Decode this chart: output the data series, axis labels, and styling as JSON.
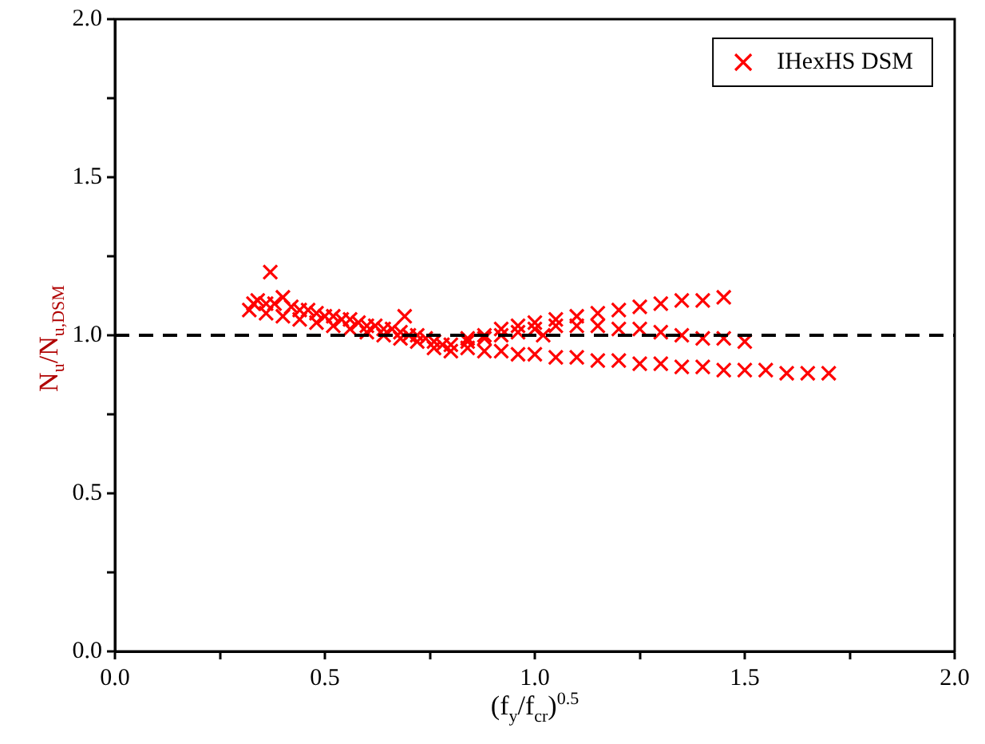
{
  "chart_data": {
    "type": "scatter",
    "xlabel": "(f$_{y}$/f$_{cr}$)$^{0.5}$",
    "ylabel": "N$_{u}$/N$_{u,DSM}$",
    "xlim": [
      0,
      2
    ],
    "ylim": [
      0,
      2
    ],
    "xticks": [
      {
        "value": 0,
        "label": "0.0"
      },
      {
        "value": 0.25,
        "label": null
      },
      {
        "value": 0.5,
        "label": "0.5"
      },
      {
        "value": 0.75,
        "label": null
      },
      {
        "value": 1,
        "label": "1.0"
      },
      {
        "value": 1.25,
        "label": null
      },
      {
        "value": 1.5,
        "label": "1.5"
      },
      {
        "value": 1.75,
        "label": null
      },
      {
        "value": 2,
        "label": "2.0"
      }
    ],
    "yticks": [
      {
        "value": 0,
        "label": "0.0"
      },
      {
        "value": 0.25,
        "label": null
      },
      {
        "value": 0.5,
        "label": "0.5"
      },
      {
        "value": 0.75,
        "label": null
      },
      {
        "value": 1,
        "label": "1.0"
      },
      {
        "value": 1.25,
        "label": null
      },
      {
        "value": 1.5,
        "label": "1.5"
      },
      {
        "value": 1.75,
        "label": null
      },
      {
        "value": 2,
        "label": "2.0"
      }
    ],
    "grid": false,
    "legend": "top right",
    "marker": "cross",
    "ref_lines": [
      {
        "axis": "y",
        "value": 1,
        "color": "#000000",
        "line_style": "dashed"
      }
    ],
    "series": [
      {
        "name": "IHexHS DSM",
        "color": "#ff0000",
        "x": [
          0.32,
          0.33,
          0.34,
          0.36,
          0.37,
          0.38,
          0.4,
          0.42,
          0.44,
          0.46,
          0.48,
          0.5,
          0.52,
          0.54,
          0.56,
          0.58,
          0.6,
          0.62,
          0.64,
          0.66,
          0.68,
          0.69,
          0.7,
          0.72,
          0.74,
          0.76,
          0.78,
          0.8,
          0.36,
          0.4,
          0.44,
          0.48,
          0.52,
          0.56,
          0.6,
          0.64,
          0.68,
          0.72,
          0.76,
          0.8,
          0.84,
          0.88,
          0.92,
          0.96,
          1.0,
          1.05,
          1.1,
          1.15,
          1.2,
          1.25,
          1.3,
          1.35,
          1.4,
          1.45,
          0.84,
          0.88,
          0.92,
          0.96,
          1.0,
          1.02,
          1.05,
          1.1,
          1.15,
          1.2,
          1.25,
          1.3,
          1.35,
          1.4,
          1.45,
          1.5,
          0.84,
          0.88,
          0.92,
          0.96,
          1.0,
          1.05,
          1.1,
          1.15,
          1.2,
          1.25,
          1.3,
          1.35,
          1.4,
          1.45,
          1.5,
          1.55,
          1.6,
          1.65,
          1.7
        ],
        "values": [
          1.08,
          1.1,
          1.11,
          1.1,
          1.2,
          1.1,
          1.12,
          1.09,
          1.08,
          1.08,
          1.07,
          1.06,
          1.06,
          1.05,
          1.05,
          1.04,
          1.03,
          1.03,
          1.02,
          1.02,
          1.01,
          1.06,
          1.0,
          1.0,
          0.99,
          0.98,
          0.97,
          0.97,
          1.07,
          1.06,
          1.05,
          1.04,
          1.03,
          1.02,
          1.01,
          1.0,
          0.99,
          0.98,
          0.96,
          0.95,
          0.99,
          1.0,
          1.02,
          1.03,
          1.04,
          1.05,
          1.06,
          1.07,
          1.08,
          1.09,
          1.1,
          1.11,
          1.11,
          1.12,
          0.98,
          0.99,
          1.0,
          1.01,
          1.02,
          1.0,
          1.03,
          1.03,
          1.03,
          1.02,
          1.02,
          1.01,
          1.0,
          0.99,
          0.99,
          0.98,
          0.96,
          0.95,
          0.95,
          0.94,
          0.94,
          0.93,
          0.93,
          0.92,
          0.92,
          0.91,
          0.91,
          0.9,
          0.9,
          0.89,
          0.89,
          0.89,
          0.88,
          0.88,
          0.88
        ]
      }
    ]
  }
}
